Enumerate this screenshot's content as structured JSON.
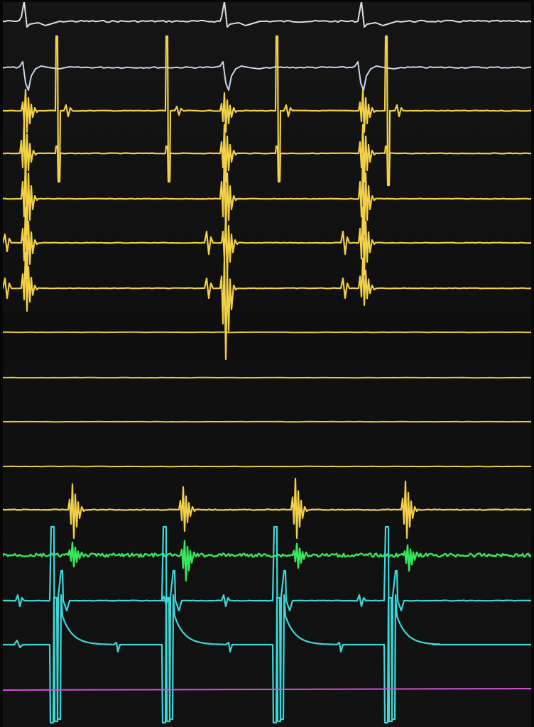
{
  "monitor": {
    "background": "#0f0f0f",
    "beat_count_visible": 4
  },
  "channels": [
    {
      "id": "surface-ecg-1",
      "color": "#d9dde6"
    },
    {
      "id": "surface-ecg-2",
      "color": "#c8d4ec"
    },
    {
      "id": "intracardiac-1",
      "color": "#f2d046"
    },
    {
      "id": "intracardiac-2",
      "color": "#f2d046"
    },
    {
      "id": "intracardiac-3",
      "color": "#f2d046"
    },
    {
      "id": "intracardiac-4",
      "color": "#f2d046"
    },
    {
      "id": "intracardiac-5",
      "color": "#f2d046"
    },
    {
      "id": "intracardiac-6-flat",
      "color": "#e6c842"
    },
    {
      "id": "intracardiac-7-flat",
      "color": "#e6c842"
    },
    {
      "id": "intracardiac-8-flat",
      "color": "#e6c842"
    },
    {
      "id": "intracardiac-9-flat",
      "color": "#e6c842"
    },
    {
      "id": "intracardiac-10",
      "color": "#f0cf4a"
    },
    {
      "id": "fractionated-green",
      "color": "#35e85a"
    },
    {
      "id": "pacing-cyan-1",
      "color": "#3fd6d8"
    },
    {
      "id": "pacing-cyan-2",
      "color": "#3fd6d8"
    },
    {
      "id": "marker-magenta",
      "color": "#d050d8"
    }
  ]
}
